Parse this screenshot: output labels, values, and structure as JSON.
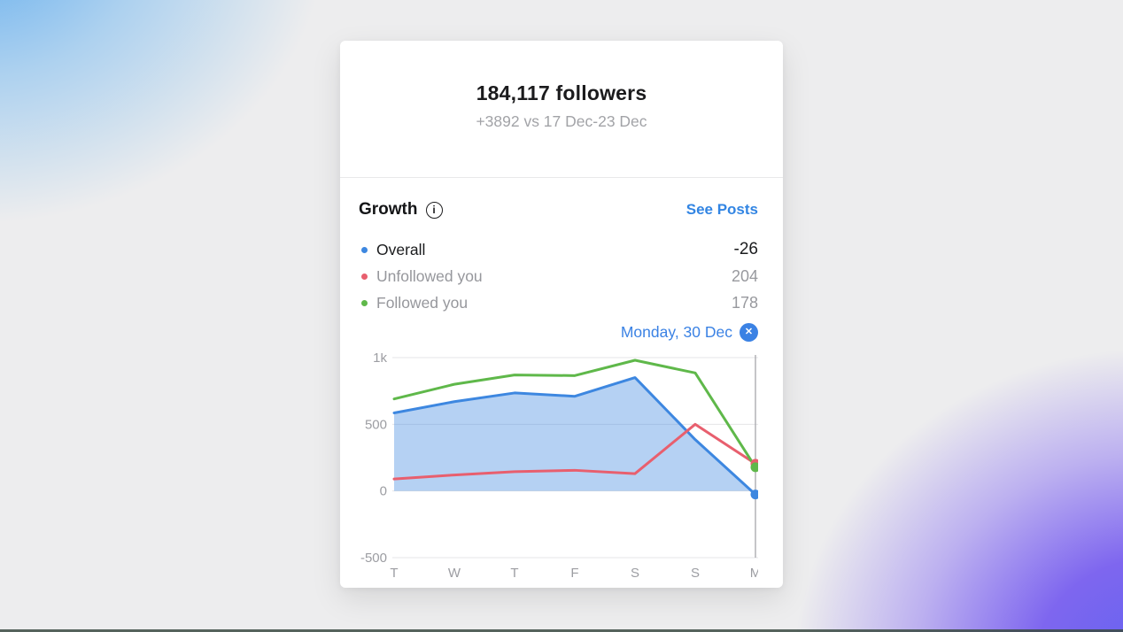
{
  "header": {
    "title": "184,117 followers",
    "subtitle": "+3892 vs 17 Dec-23 Dec"
  },
  "growth": {
    "title": "Growth",
    "see_posts_label": "See Posts",
    "legend": [
      {
        "label": "Overall",
        "value": "-26",
        "color": "#3d87e0"
      },
      {
        "label": "Unfollowed you",
        "value": "204",
        "color": "#e85f6e"
      },
      {
        "label": "Followed you",
        "value": "178",
        "color": "#5fb84a"
      }
    ],
    "selected_day": {
      "label": "Monday, 30 Dec"
    }
  },
  "icons": {
    "info": "i",
    "close": "✕"
  },
  "colors": {
    "accent_blue": "#3b82e4",
    "overall_line": "#3d87e0",
    "overall_fill": "rgba(61,134,224,0.38)",
    "unfollowed_line": "#e85f6e",
    "followed_line": "#5fb84a",
    "grid_line": "#e5e5e7",
    "marker_line": "#a6a6ab",
    "tick_text": "#9c9da2"
  },
  "chart_data": {
    "type": "area",
    "title": "Growth",
    "categories": [
      "T",
      "W",
      "T",
      "F",
      "S",
      "S",
      "M"
    ],
    "series": [
      {
        "name": "Overall",
        "color": "#3d87e0",
        "area": true,
        "fill": "rgba(61,134,224,0.38)",
        "values": [
          585,
          670,
          735,
          710,
          850,
          385,
          -26
        ]
      },
      {
        "name": "Unfollowed you",
        "color": "#e85f6e",
        "area": false,
        "values": [
          90,
          120,
          145,
          155,
          130,
          500,
          204
        ]
      },
      {
        "name": "Followed you",
        "color": "#5fb84a",
        "area": false,
        "values": [
          690,
          800,
          870,
          865,
          980,
          885,
          178
        ]
      }
    ],
    "ylim": [
      -500,
      1000
    ],
    "yticks": [
      {
        "value": 1000,
        "label": "1k"
      },
      {
        "value": 500,
        "label": "500"
      },
      {
        "value": 0,
        "label": "0"
      },
      {
        "value": -500,
        "label": "-500"
      }
    ],
    "xlabel": "",
    "ylabel": "",
    "grid": true,
    "legend_position": "above-chart",
    "selected_index": 6,
    "selected_point_radius": 5.5,
    "dot_draw_order": [
      1,
      2,
      0
    ]
  }
}
